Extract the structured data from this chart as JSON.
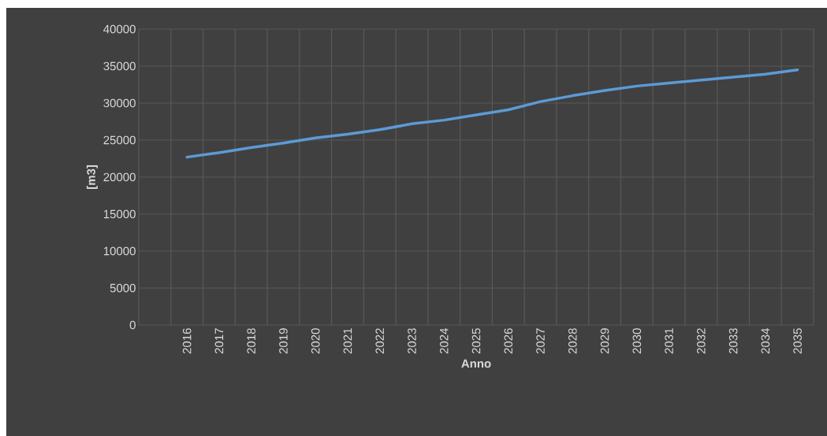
{
  "chart_data": {
    "type": "line",
    "xlabel": "Anno",
    "ylabel": "[m3]",
    "categories": [
      null,
      "2016",
      "2017",
      "2018",
      "2019",
      "2020",
      "2021",
      "2022",
      "2023",
      "2024",
      "2025",
      "2026",
      "2027",
      "2028",
      "2029",
      "2030",
      "2031",
      "2032",
      "2033",
      "2034",
      "2035"
    ],
    "values": [
      null,
      22700,
      23300,
      24000,
      24600,
      25300,
      25800,
      26400,
      27200,
      27700,
      28400,
      29100,
      30200,
      31000,
      31700,
      32300,
      32700,
      33100,
      33500,
      33900,
      34500
    ],
    "color": "#5b9bd5",
    "ylim": [
      0,
      40000
    ],
    "yticks": [
      0,
      5000,
      10000,
      15000,
      20000,
      25000,
      30000,
      35000,
      40000
    ],
    "grid": true
  }
}
